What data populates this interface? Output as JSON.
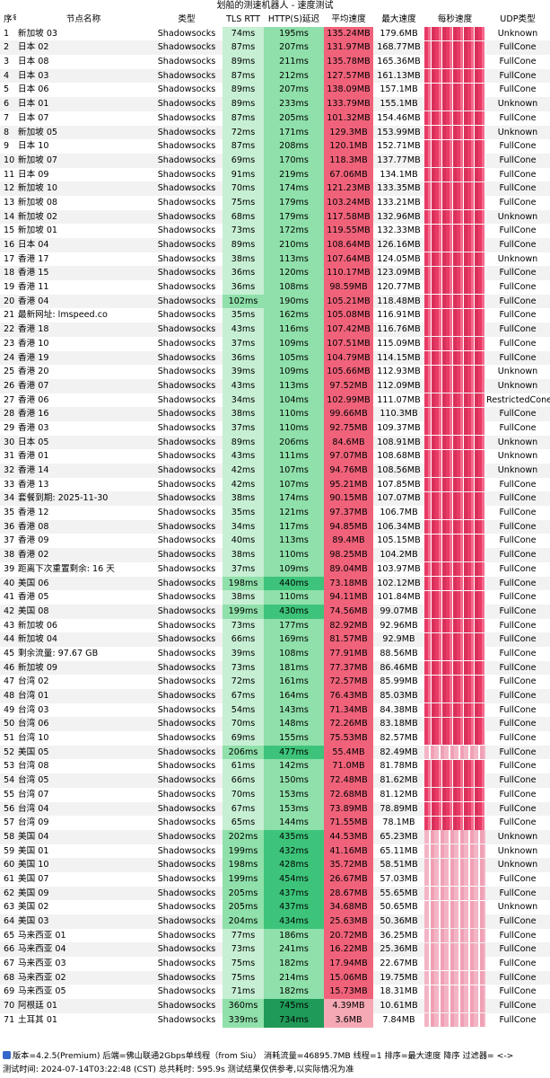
{
  "title": "划船的测速机器人 - 速度测试",
  "columns": [
    "序号",
    "节点名称",
    "类型",
    "TLS RTT",
    "HTTP(S)延迟",
    "平均速度",
    "最大速度",
    "每秒速度",
    "UDP类型"
  ],
  "colors": {
    "tls_fast": "#c7efd4",
    "http_fast": "#8fe0aa",
    "http_slow": "#3dc47a",
    "http_slowest": "#1f9a58",
    "avg_speed": "#f0627a",
    "avg_speed_low": "#f5a9b5"
  },
  "rows": [
    {
      "idx": "1",
      "name": "新加坡 03",
      "type": "Shadowsocks",
      "tls": "74ms",
      "http": "195ms",
      "avg": "135.24MB",
      "max": "179.6MB",
      "udp": "Unknown"
    },
    {
      "idx": "2",
      "name": "日本 02",
      "type": "Shadowsocks",
      "tls": "87ms",
      "http": "207ms",
      "avg": "131.97MB",
      "max": "168.77MB",
      "udp": "FullCone"
    },
    {
      "idx": "3",
      "name": "日本 08",
      "type": "Shadowsocks",
      "tls": "89ms",
      "http": "211ms",
      "avg": "135.78MB",
      "max": "165.36MB",
      "udp": "FullCone"
    },
    {
      "idx": "4",
      "name": "日本 03",
      "type": "Shadowsocks",
      "tls": "87ms",
      "http": "212ms",
      "avg": "127.57MB",
      "max": "161.13MB",
      "udp": "FullCone"
    },
    {
      "idx": "5",
      "name": "日本 06",
      "type": "Shadowsocks",
      "tls": "89ms",
      "http": "207ms",
      "avg": "138.09MB",
      "max": "157.1MB",
      "udp": "FullCone"
    },
    {
      "idx": "6",
      "name": "日本 01",
      "type": "Shadowsocks",
      "tls": "89ms",
      "http": "233ms",
      "avg": "133.79MB",
      "max": "155.1MB",
      "udp": "Unknown"
    },
    {
      "idx": "7",
      "name": "日本 07",
      "type": "Shadowsocks",
      "tls": "87ms",
      "http": "205ms",
      "avg": "101.32MB",
      "max": "154.46MB",
      "udp": "FullCone"
    },
    {
      "idx": "8",
      "name": "新加坡 05",
      "type": "Shadowsocks",
      "tls": "72ms",
      "http": "171ms",
      "avg": "129.3MB",
      "max": "153.99MB",
      "udp": "Unknown"
    },
    {
      "idx": "9",
      "name": "日本 10",
      "type": "Shadowsocks",
      "tls": "87ms",
      "http": "208ms",
      "avg": "120.1MB",
      "max": "152.71MB",
      "udp": "FullCone"
    },
    {
      "idx": "10",
      "name": "新加坡 07",
      "type": "Shadowsocks",
      "tls": "69ms",
      "http": "170ms",
      "avg": "118.3MB",
      "max": "137.77MB",
      "udp": "FullCone"
    },
    {
      "idx": "11",
      "name": "日本 09",
      "type": "Shadowsocks",
      "tls": "91ms",
      "http": "219ms",
      "avg": "67.06MB",
      "max": "134.1MB",
      "udp": "FullCone"
    },
    {
      "idx": "12",
      "name": "新加坡 10",
      "type": "Shadowsocks",
      "tls": "70ms",
      "http": "174ms",
      "avg": "121.23MB",
      "max": "133.35MB",
      "udp": "FullCone"
    },
    {
      "idx": "13",
      "name": "新加坡 08",
      "type": "Shadowsocks",
      "tls": "75ms",
      "http": "179ms",
      "avg": "103.24MB",
      "max": "133.21MB",
      "udp": "FullCone"
    },
    {
      "idx": "14",
      "name": "新加坡 02",
      "type": "Shadowsocks",
      "tls": "68ms",
      "http": "179ms",
      "avg": "117.58MB",
      "max": "132.96MB",
      "udp": "Unknown"
    },
    {
      "idx": "15",
      "name": "新加坡 01",
      "type": "Shadowsocks",
      "tls": "73ms",
      "http": "172ms",
      "avg": "119.55MB",
      "max": "132.33MB",
      "udp": "FullCone"
    },
    {
      "idx": "16",
      "name": "日本 04",
      "type": "Shadowsocks",
      "tls": "89ms",
      "http": "210ms",
      "avg": "108.64MB",
      "max": "126.16MB",
      "udp": "FullCone"
    },
    {
      "idx": "17",
      "name": "香港 17",
      "type": "Shadowsocks",
      "tls": "38ms",
      "http": "113ms",
      "avg": "107.64MB",
      "max": "124.05MB",
      "udp": "Unknown"
    },
    {
      "idx": "18",
      "name": "香港 15",
      "type": "Shadowsocks",
      "tls": "36ms",
      "http": "120ms",
      "avg": "110.17MB",
      "max": "123.09MB",
      "udp": "FullCone"
    },
    {
      "idx": "19",
      "name": "香港 11",
      "type": "Shadowsocks",
      "tls": "36ms",
      "http": "108ms",
      "avg": "98.59MB",
      "max": "120.77MB",
      "udp": "FullCone"
    },
    {
      "idx": "20",
      "name": "香港 04",
      "type": "Shadowsocks",
      "tls": "102ms",
      "http": "190ms",
      "avg": "105.21MB",
      "max": "118.48MB",
      "udp": "FullCone"
    },
    {
      "idx": "21",
      "name": "最新网址: lmspeed.co",
      "type": "Shadowsocks",
      "tls": "35ms",
      "http": "162ms",
      "avg": "105.08MB",
      "max": "116.91MB",
      "udp": "FullCone"
    },
    {
      "idx": "22",
      "name": "香港 18",
      "type": "Shadowsocks",
      "tls": "43ms",
      "http": "116ms",
      "avg": "107.42MB",
      "max": "116.76MB",
      "udp": "FullCone"
    },
    {
      "idx": "23",
      "name": "香港 10",
      "type": "Shadowsocks",
      "tls": "37ms",
      "http": "109ms",
      "avg": "107.51MB",
      "max": "115.09MB",
      "udp": "FullCone"
    },
    {
      "idx": "24",
      "name": "香港 19",
      "type": "Shadowsocks",
      "tls": "36ms",
      "http": "105ms",
      "avg": "104.79MB",
      "max": "114.15MB",
      "udp": "FullCone"
    },
    {
      "idx": "25",
      "name": "香港 20",
      "type": "Shadowsocks",
      "tls": "39ms",
      "http": "109ms",
      "avg": "105.66MB",
      "max": "112.93MB",
      "udp": "Unknown"
    },
    {
      "idx": "26",
      "name": "香港 07",
      "type": "Shadowsocks",
      "tls": "43ms",
      "http": "113ms",
      "avg": "97.52MB",
      "max": "112.09MB",
      "udp": "Unknown"
    },
    {
      "idx": "27",
      "name": "香港 06",
      "type": "Shadowsocks",
      "tls": "34ms",
      "http": "104ms",
      "avg": "102.99MB",
      "max": "111.07MB",
      "udp": "RestrictedCone"
    },
    {
      "idx": "28",
      "name": "香港 16",
      "type": "Shadowsocks",
      "tls": "38ms",
      "http": "110ms",
      "avg": "99.66MB",
      "max": "110.3MB",
      "udp": "FullCone"
    },
    {
      "idx": "29",
      "name": "香港 03",
      "type": "Shadowsocks",
      "tls": "37ms",
      "http": "110ms",
      "avg": "92.75MB",
      "max": "109.37MB",
      "udp": "FullCone"
    },
    {
      "idx": "30",
      "name": "日本 05",
      "type": "Shadowsocks",
      "tls": "89ms",
      "http": "206ms",
      "avg": "84.6MB",
      "max": "108.91MB",
      "udp": "Unknown"
    },
    {
      "idx": "31",
      "name": "香港 01",
      "type": "Shadowsocks",
      "tls": "43ms",
      "http": "111ms",
      "avg": "97.07MB",
      "max": "108.68MB",
      "udp": "Unknown"
    },
    {
      "idx": "32",
      "name": "香港 14",
      "type": "Shadowsocks",
      "tls": "42ms",
      "http": "107ms",
      "avg": "94.76MB",
      "max": "108.56MB",
      "udp": "Unknown"
    },
    {
      "idx": "33",
      "name": "香港 13",
      "type": "Shadowsocks",
      "tls": "42ms",
      "http": "107ms",
      "avg": "95.21MB",
      "max": "107.85MB",
      "udp": "FullCone"
    },
    {
      "idx": "34",
      "name": "套餐到期: 2025-11-30",
      "type": "Shadowsocks",
      "tls": "38ms",
      "http": "174ms",
      "avg": "90.15MB",
      "max": "107.07MB",
      "udp": "FullCone"
    },
    {
      "idx": "35",
      "name": "香港 12",
      "type": "Shadowsocks",
      "tls": "35ms",
      "http": "121ms",
      "avg": "97.37MB",
      "max": "106.7MB",
      "udp": "FullCone"
    },
    {
      "idx": "36",
      "name": "香港 08",
      "type": "Shadowsocks",
      "tls": "34ms",
      "http": "117ms",
      "avg": "94.85MB",
      "max": "106.34MB",
      "udp": "FullCone"
    },
    {
      "idx": "37",
      "name": "香港 09",
      "type": "Shadowsocks",
      "tls": "40ms",
      "http": "113ms",
      "avg": "89.4MB",
      "max": "105.15MB",
      "udp": "FullCone"
    },
    {
      "idx": "38",
      "name": "香港 02",
      "type": "Shadowsocks",
      "tls": "38ms",
      "http": "110ms",
      "avg": "98.25MB",
      "max": "104.2MB",
      "udp": "FullCone"
    },
    {
      "idx": "39",
      "name": "距离下次重置剩余: 16 天",
      "type": "Shadowsocks",
      "tls": "37ms",
      "http": "109ms",
      "avg": "89.04MB",
      "max": "103.97MB",
      "udp": "FullCone"
    },
    {
      "idx": "40",
      "name": "美国 06",
      "type": "Shadowsocks",
      "tls": "198ms",
      "http": "440ms",
      "avg": "73.18MB",
      "max": "102.12MB",
      "udp": "FullCone"
    },
    {
      "idx": "41",
      "name": "香港 05",
      "type": "Shadowsocks",
      "tls": "38ms",
      "http": "110ms",
      "avg": "94.11MB",
      "max": "101.84MB",
      "udp": "FullCone"
    },
    {
      "idx": "42",
      "name": "美国 08",
      "type": "Shadowsocks",
      "tls": "199ms",
      "http": "430ms",
      "avg": "74.56MB",
      "max": "99.07MB",
      "udp": "FullCone"
    },
    {
      "idx": "43",
      "name": "新加坡 06",
      "type": "Shadowsocks",
      "tls": "73ms",
      "http": "177ms",
      "avg": "82.92MB",
      "max": "92.96MB",
      "udp": "FullCone"
    },
    {
      "idx": "44",
      "name": "新加坡 04",
      "type": "Shadowsocks",
      "tls": "66ms",
      "http": "169ms",
      "avg": "81.57MB",
      "max": "92.9MB",
      "udp": "FullCone"
    },
    {
      "idx": "45",
      "name": "剩余流量: 97.67 GB",
      "type": "Shadowsocks",
      "tls": "39ms",
      "http": "108ms",
      "avg": "77.91MB",
      "max": "88.56MB",
      "udp": "FullCone"
    },
    {
      "idx": "46",
      "name": "新加坡 09",
      "type": "Shadowsocks",
      "tls": "73ms",
      "http": "181ms",
      "avg": "77.37MB",
      "max": "86.46MB",
      "udp": "FullCone"
    },
    {
      "idx": "47",
      "name": "台湾 02",
      "type": "Shadowsocks",
      "tls": "72ms",
      "http": "161ms",
      "avg": "72.57MB",
      "max": "85.99MB",
      "udp": "FullCone"
    },
    {
      "idx": "48",
      "name": "台湾 01",
      "type": "Shadowsocks",
      "tls": "67ms",
      "http": "164ms",
      "avg": "76.43MB",
      "max": "85.03MB",
      "udp": "FullCone"
    },
    {
      "idx": "49",
      "name": "台湾 03",
      "type": "Shadowsocks",
      "tls": "54ms",
      "http": "143ms",
      "avg": "71.34MB",
      "max": "84.38MB",
      "udp": "FullCone"
    },
    {
      "idx": "50",
      "name": "台湾 06",
      "type": "Shadowsocks",
      "tls": "70ms",
      "http": "148ms",
      "avg": "72.26MB",
      "max": "83.18MB",
      "udp": "FullCone"
    },
    {
      "idx": "51",
      "name": "台湾 10",
      "type": "Shadowsocks",
      "tls": "69ms",
      "http": "155ms",
      "avg": "75.53MB",
      "max": "82.57MB",
      "udp": "FullCone"
    },
    {
      "idx": "52",
      "name": "美国 05",
      "type": "Shadowsocks",
      "tls": "206ms",
      "http": "477ms",
      "avg": "55.4MB",
      "max": "82.49MB",
      "udp": "FullCone"
    },
    {
      "idx": "53",
      "name": "台湾 08",
      "type": "Shadowsocks",
      "tls": "61ms",
      "http": "142ms",
      "avg": "71.0MB",
      "max": "81.78MB",
      "udp": "FullCone"
    },
    {
      "idx": "54",
      "name": "台湾 05",
      "type": "Shadowsocks",
      "tls": "66ms",
      "http": "150ms",
      "avg": "72.48MB",
      "max": "81.62MB",
      "udp": "FullCone"
    },
    {
      "idx": "55",
      "name": "台湾 07",
      "type": "Shadowsocks",
      "tls": "70ms",
      "http": "153ms",
      "avg": "72.68MB",
      "max": "81.12MB",
      "udp": "FullCone"
    },
    {
      "idx": "56",
      "name": "台湾 04",
      "type": "Shadowsocks",
      "tls": "67ms",
      "http": "153ms",
      "avg": "73.89MB",
      "max": "78.89MB",
      "udp": "FullCone"
    },
    {
      "idx": "57",
      "name": "台湾 09",
      "type": "Shadowsocks",
      "tls": "65ms",
      "http": "144ms",
      "avg": "71.55MB",
      "max": "78.1MB",
      "udp": "FullCone"
    },
    {
      "idx": "58",
      "name": "美国 04",
      "type": "Shadowsocks",
      "tls": "202ms",
      "http": "435ms",
      "avg": "44.53MB",
      "max": "65.23MB",
      "udp": "Unknown"
    },
    {
      "idx": "59",
      "name": "美国 01",
      "type": "Shadowsocks",
      "tls": "199ms",
      "http": "432ms",
      "avg": "41.16MB",
      "max": "65.11MB",
      "udp": "Unknown"
    },
    {
      "idx": "60",
      "name": "美国 10",
      "type": "Shadowsocks",
      "tls": "198ms",
      "http": "428ms",
      "avg": "35.72MB",
      "max": "58.51MB",
      "udp": "Unknown"
    },
    {
      "idx": "61",
      "name": "美国 07",
      "type": "Shadowsocks",
      "tls": "199ms",
      "http": "454ms",
      "avg": "26.67MB",
      "max": "57.03MB",
      "udp": "FullCone"
    },
    {
      "idx": "62",
      "name": "美国 09",
      "type": "Shadowsocks",
      "tls": "205ms",
      "http": "437ms",
      "avg": "28.67MB",
      "max": "55.65MB",
      "udp": "FullCone"
    },
    {
      "idx": "63",
      "name": "美国 02",
      "type": "Shadowsocks",
      "tls": "205ms",
      "http": "437ms",
      "avg": "34.68MB",
      "max": "50.65MB",
      "udp": "Unknown"
    },
    {
      "idx": "64",
      "name": "美国 03",
      "type": "Shadowsocks",
      "tls": "204ms",
      "http": "434ms",
      "avg": "25.63MB",
      "max": "50.36MB",
      "udp": "FullCone"
    },
    {
      "idx": "65",
      "name": "马来西亚 01",
      "type": "Shadowsocks",
      "tls": "77ms",
      "http": "186ms",
      "avg": "20.72MB",
      "max": "36.25MB",
      "udp": "FullCone"
    },
    {
      "idx": "66",
      "name": "马来西亚 04",
      "type": "Shadowsocks",
      "tls": "73ms",
      "http": "241ms",
      "avg": "16.22MB",
      "max": "25.36MB",
      "udp": "FullCone"
    },
    {
      "idx": "67",
      "name": "马来西亚 03",
      "type": "Shadowsocks",
      "tls": "75ms",
      "http": "182ms",
      "avg": "17.94MB",
      "max": "22.67MB",
      "udp": "FullCone"
    },
    {
      "idx": "68",
      "name": "马来西亚 02",
      "type": "Shadowsocks",
      "tls": "75ms",
      "http": "214ms",
      "avg": "15.06MB",
      "max": "19.75MB",
      "udp": "FullCone"
    },
    {
      "idx": "69",
      "name": "马来西亚 05",
      "type": "Shadowsocks",
      "tls": "71ms",
      "http": "182ms",
      "avg": "15.73MB",
      "max": "18.31MB",
      "udp": "FullCone"
    },
    {
      "idx": "70",
      "name": "阿根廷 01",
      "type": "Shadowsocks",
      "tls": "360ms",
      "http": "745ms",
      "avg": "4.39MB",
      "max": "10.61MB",
      "udp": "FullCone"
    },
    {
      "idx": "71",
      "name": "土耳其 01",
      "type": "Shadowsocks",
      "tls": "339ms",
      "http": "734ms",
      "avg": "3.6MB",
      "max": "7.84MB",
      "udp": "FullCone"
    }
  ],
  "footer": {
    "line1": "版本=4.2.5(Premium)  后端=佛山联通2Gbps单线程（from Siu）  消耗流量=46895.7MB  线程=1  排序=最大速度 降序  过滤器= <->",
    "line2": "测试时间: 2024-07-14T03:22:48 (CST) 总共耗时: 595.9s 测试结果仅供参考,以实际情况为准"
  }
}
